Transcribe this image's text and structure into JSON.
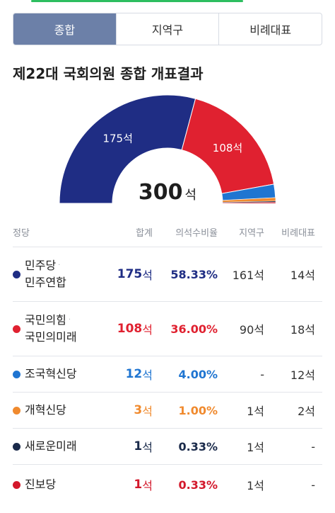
{
  "tabs": [
    {
      "label": "종합",
      "active": true
    },
    {
      "label": "지역구",
      "active": false
    },
    {
      "label": "비례대표",
      "active": false
    }
  ],
  "title": "제22대 국회의원 종합 개표결과",
  "total": {
    "value": "300",
    "unit": "석"
  },
  "table": {
    "headers": [
      "정당",
      "합계",
      "의석수비율",
      "지역구",
      "비례대표"
    ],
    "rows": [
      {
        "name_line1": "민주당",
        "name_sep": "·",
        "name_line2": "민주연합",
        "total": "175",
        "unit": "석",
        "pct": "58.33%",
        "district": "161석",
        "proportional": "14석",
        "color": "#1f2d84"
      },
      {
        "name_line1": "국민의힘",
        "name_sep": "·",
        "name_line2": "국민의미래",
        "total": "108",
        "unit": "석",
        "pct": "36.00%",
        "district": "90석",
        "proportional": "18석",
        "color": "#e02130"
      },
      {
        "name_line1": "조국혁신당",
        "name_sep": "",
        "name_line2": "",
        "total": "12",
        "unit": "석",
        "pct": "4.00%",
        "district": "-",
        "proportional": "12석",
        "color": "#1f75d1"
      },
      {
        "name_line1": "개혁신당",
        "name_sep": "",
        "name_line2": "",
        "total": "3",
        "unit": "석",
        "pct": "1.00%",
        "district": "1석",
        "proportional": "2석",
        "color": "#f08a2e"
      },
      {
        "name_line1": "새로운미래",
        "name_sep": "",
        "name_line2": "",
        "total": "1",
        "unit": "석",
        "pct": "0.33%",
        "district": "1석",
        "proportional": "-",
        "color": "#1a2a4a"
      },
      {
        "name_line1": "진보당",
        "name_sep": "",
        "name_line2": "",
        "total": "1",
        "unit": "석",
        "pct": "0.33%",
        "district": "1석",
        "proportional": "-",
        "color": "#d3182b"
      }
    ]
  },
  "chart_data": {
    "type": "pie",
    "subtype": "semicircle",
    "total": 300,
    "slices": [
      {
        "value": 175,
        "label": "175석",
        "color": "#1f2d84"
      },
      {
        "value": 108,
        "label": "108석",
        "color": "#e02130"
      },
      {
        "value": 12,
        "label": "",
        "color": "#1f75d1"
      },
      {
        "value": 3,
        "label": "",
        "color": "#f08a2e"
      },
      {
        "value": 1,
        "label": "",
        "color": "#1a2a4a"
      },
      {
        "value": 1,
        "label": "",
        "color": "#d3182b"
      }
    ]
  }
}
